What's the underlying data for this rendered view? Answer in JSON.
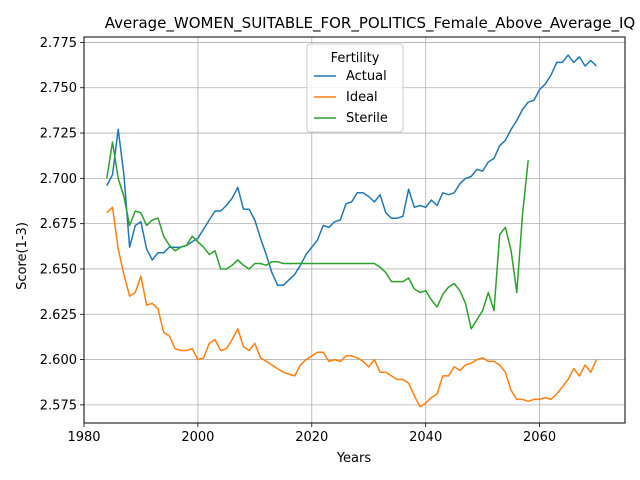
{
  "chart_data": {
    "type": "line",
    "title": "Average_WOMEN_SUITABLE_FOR_POLITICS_Female_Above_Average_IQ",
    "xlabel": "Years",
    "ylabel": "Score(1-3)",
    "xlim": [
      1980,
      2075
    ],
    "ylim": [
      2.565,
      2.778
    ],
    "xticks": [
      1980,
      2000,
      2020,
      2040,
      2060
    ],
    "yticks": [
      2.575,
      2.6,
      2.625,
      2.65,
      2.675,
      2.7,
      2.725,
      2.75,
      2.775
    ],
    "ytick_labels": [
      "2.575",
      "2.600",
      "2.625",
      "2.650",
      "2.675",
      "2.700",
      "2.725",
      "2.750",
      "2.775"
    ],
    "grid": true,
    "legend": {
      "title": "Fertility",
      "placement": "upper-center"
    },
    "series": [
      {
        "name": "Actual",
        "color": "#1f77b4",
        "x": [
          1984,
          1985,
          1986,
          1987,
          1988,
          1989,
          1990,
          1991,
          1992,
          1993,
          1994,
          1995,
          1996,
          1997,
          1998,
          1999,
          2000,
          2001,
          2002,
          2003,
          2004,
          2005,
          2006,
          2007,
          2008,
          2009,
          2010,
          2011,
          2012,
          2013,
          2014,
          2015,
          2016,
          2017,
          2018,
          2019,
          2020,
          2021,
          2022,
          2023,
          2024,
          2025,
          2026,
          2027,
          2028,
          2029,
          2030,
          2031,
          2032,
          2033,
          2034,
          2035,
          2036,
          2037,
          2038,
          2039,
          2040,
          2041,
          2042,
          2043,
          2044,
          2045,
          2046,
          2047,
          2048,
          2049,
          2050,
          2051,
          2052,
          2053,
          2054,
          2055,
          2056,
          2057,
          2058,
          2059,
          2060,
          2061,
          2062,
          2063,
          2064,
          2065,
          2066,
          2067,
          2068,
          2069,
          2070
        ],
        "values": [
          2.696,
          2.702,
          2.727,
          2.702,
          2.662,
          2.674,
          2.676,
          2.661,
          2.655,
          2.659,
          2.659,
          2.662,
          2.662,
          2.662,
          2.663,
          2.665,
          2.667,
          2.672,
          2.677,
          2.682,
          2.682,
          2.685,
          2.689,
          2.695,
          2.683,
          2.683,
          2.677,
          2.667,
          2.658,
          2.648,
          2.641,
          2.641,
          2.644,
          2.647,
          2.652,
          2.658,
          2.662,
          2.666,
          2.674,
          2.673,
          2.676,
          2.677,
          2.686,
          2.687,
          2.692,
          2.692,
          2.69,
          2.687,
          2.691,
          2.681,
          2.678,
          2.678,
          2.679,
          2.694,
          2.684,
          2.685,
          2.684,
          2.688,
          2.685,
          2.692,
          2.691,
          2.692,
          2.697,
          2.7,
          2.701,
          2.705,
          2.704,
          2.709,
          2.711,
          2.718,
          2.721,
          2.727,
          2.732,
          2.738,
          2.742,
          2.743,
          2.749,
          2.752,
          2.757,
          2.764,
          2.764,
          2.768,
          2.764,
          2.767,
          2.762,
          2.765,
          2.762
        ]
      },
      {
        "name": "Ideal",
        "color": "#ff7f0e",
        "x": [
          1984,
          1985,
          1986,
          1987,
          1988,
          1989,
          1990,
          1991,
          1992,
          1993,
          1994,
          1995,
          1996,
          1997,
          1998,
          1999,
          2000,
          2001,
          2002,
          2003,
          2004,
          2005,
          2006,
          2007,
          2008,
          2009,
          2010,
          2011,
          2012,
          2013,
          2014,
          2015,
          2016,
          2017,
          2018,
          2019,
          2020,
          2021,
          2022,
          2023,
          2024,
          2025,
          2026,
          2027,
          2028,
          2029,
          2030,
          2031,
          2032,
          2033,
          2034,
          2035,
          2036,
          2037,
          2038,
          2039,
          2040,
          2041,
          2042,
          2043,
          2044,
          2045,
          2046,
          2047,
          2048,
          2049,
          2050,
          2051,
          2052,
          2053,
          2054,
          2055,
          2056,
          2057,
          2058,
          2059,
          2060,
          2061,
          2062,
          2063,
          2064,
          2065,
          2066,
          2067,
          2068,
          2069,
          2070
        ],
        "values": [
          2.681,
          2.684,
          2.661,
          2.647,
          2.635,
          2.637,
          2.646,
          2.63,
          2.631,
          2.628,
          2.615,
          2.613,
          2.606,
          2.605,
          2.605,
          2.606,
          2.6,
          2.601,
          2.609,
          2.611,
          2.605,
          2.606,
          2.611,
          2.617,
          2.607,
          2.605,
          2.609,
          2.601,
          2.599,
          2.597,
          2.595,
          2.593,
          2.592,
          2.591,
          2.597,
          2.6,
          2.602,
          2.604,
          2.604,
          2.599,
          2.6,
          2.599,
          2.602,
          2.602,
          2.601,
          2.599,
          2.596,
          2.6,
          2.593,
          2.593,
          2.591,
          2.589,
          2.589,
          2.587,
          2.58,
          2.574,
          2.576,
          2.579,
          2.581,
          2.591,
          2.591,
          2.596,
          2.594,
          2.597,
          2.598,
          2.6,
          2.601,
          2.599,
          2.599,
          2.597,
          2.593,
          2.583,
          2.578,
          2.578,
          2.577,
          2.578,
          2.578,
          2.579,
          2.578,
          2.581,
          2.585,
          2.589,
          2.595,
          2.591,
          2.597,
          2.593,
          2.6
        ]
      },
      {
        "name": "Sterile",
        "color": "#2ca02c",
        "x": [
          1984,
          1985,
          1986,
          1987,
          1988,
          1989,
          1990,
          1991,
          1992,
          1993,
          1994,
          1995,
          1996,
          1997,
          1998,
          1999,
          2000,
          2001,
          2002,
          2003,
          2004,
          2005,
          2006,
          2007,
          2008,
          2009,
          2010,
          2011,
          2012,
          2013,
          2014,
          2015,
          2016,
          2017,
          2018,
          2019,
          2020,
          2021,
          2022,
          2023,
          2024,
          2025,
          2026,
          2027,
          2028,
          2029,
          2030,
          2031,
          2032,
          2033,
          2034,
          2035,
          2036,
          2037,
          2038,
          2039,
          2040,
          2041,
          2042,
          2043,
          2044,
          2045,
          2046,
          2047,
          2048,
          2049,
          2050,
          2051,
          2052,
          2053,
          2054,
          2055,
          2056,
          2057,
          2058
        ],
        "values": [
          2.7,
          2.72,
          2.7,
          2.69,
          2.674,
          2.682,
          2.681,
          2.674,
          2.677,
          2.678,
          2.668,
          2.663,
          2.66,
          2.662,
          2.663,
          2.668,
          2.665,
          2.662,
          2.658,
          2.66,
          2.65,
          2.65,
          2.652,
          2.655,
          2.652,
          2.65,
          2.653,
          2.653,
          2.652,
          2.654,
          2.654,
          2.653,
          2.653,
          2.653,
          2.653,
          2.653,
          2.653,
          2.653,
          2.653,
          2.653,
          2.653,
          2.653,
          2.653,
          2.653,
          2.653,
          2.653,
          2.653,
          2.653,
          2.651,
          2.648,
          2.643,
          2.643,
          2.643,
          2.645,
          2.639,
          2.637,
          2.638,
          2.633,
          2.629,
          2.636,
          2.64,
          2.642,
          2.638,
          2.631,
          2.617,
          2.622,
          2.627,
          2.637,
          2.627,
          2.669,
          2.673,
          2.66,
          2.637,
          2.68,
          2.71
        ]
      }
    ]
  }
}
